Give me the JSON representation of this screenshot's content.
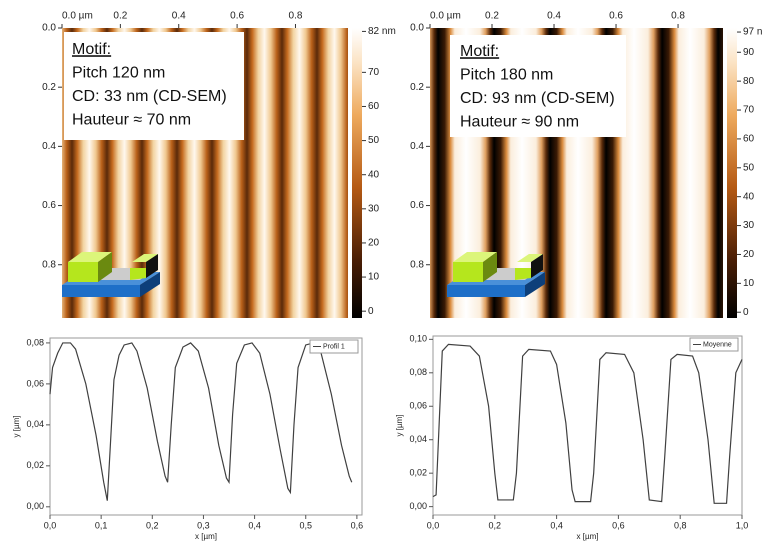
{
  "chart_data": [
    {
      "type": "image",
      "annotation": [
        "Motif:",
        "Pitch 120 nm",
        "CD: 33 nm (CD-SEM)",
        "Hauteur ≈ 70 nm"
      ],
      "xlim": [
        0,
        0.98
      ],
      "xticks": [
        {
          "value": 0,
          "label": "0.0 µm"
        },
        0.2,
        0.4,
        0.6,
        0.8
      ],
      "ylim": [
        0,
        0.98
      ],
      "yticks": [
        {
          "value": 0,
          "label": "0.0"
        },
        0.2,
        0.4,
        0.6,
        0.8
      ],
      "clim": [
        -2,
        83
      ],
      "cticks": [
        {
          "value": 82,
          "label": "82 nm"
        },
        70,
        60,
        50,
        40,
        30,
        20,
        10,
        0
      ]
    },
    {
      "type": "image",
      "annotation": [
        "Motif:",
        "Pitch 180 nm",
        "CD: 93 nm (CD-SEM)",
        "Hauteur ≈ 90 nm"
      ],
      "xlim": [
        0,
        0.945
      ],
      "xticks": [
        {
          "value": 0,
          "label": "0.0 µm"
        },
        0.2,
        0.4,
        0.6,
        0.8
      ],
      "ylim": [
        0,
        0.98
      ],
      "yticks": [
        {
          "value": 0,
          "label": "0.0"
        },
        0.2,
        0.4,
        0.6,
        0.8
      ],
      "clim": [
        -2,
        98.4
      ],
      "cticks": [
        {
          "value": 97,
          "label": "97 n"
        },
        90,
        80,
        70,
        60,
        50,
        40,
        30,
        20,
        10,
        0
      ]
    },
    {
      "type": "line",
      "xlabel": "x [µm]",
      "ylabel": "y [µm]",
      "xlim": [
        0,
        0.61
      ],
      "xticks": [
        {
          "value": 0,
          "label": "0,0"
        },
        {
          "value": 0.1,
          "label": "0,1"
        },
        {
          "value": 0.2,
          "label": "0,2"
        },
        {
          "value": 0.3,
          "label": "0,3"
        },
        {
          "value": 0.4,
          "label": "0,4"
        },
        {
          "value": 0.5,
          "label": "0,5"
        },
        {
          "value": 0.6,
          "label": "0,6"
        }
      ],
      "ylim": [
        -0.004,
        0.0824
      ],
      "yticks": [
        {
          "value": 0,
          "label": "0,00"
        },
        {
          "value": 0.02,
          "label": "0,02"
        },
        {
          "value": 0.04,
          "label": "0,04"
        },
        {
          "value": 0.06,
          "label": "0,06"
        },
        {
          "value": 0.08,
          "label": "0,08"
        }
      ],
      "x": [
        0,
        0.005,
        0.015,
        0.025,
        0.04,
        0.05,
        0.07,
        0.09,
        0.105,
        0.112,
        0.118,
        0.125,
        0.135,
        0.145,
        0.16,
        0.17,
        0.19,
        0.21,
        0.225,
        0.23,
        0.237,
        0.245,
        0.26,
        0.275,
        0.29,
        0.31,
        0.33,
        0.345,
        0.35,
        0.357,
        0.365,
        0.38,
        0.395,
        0.41,
        0.43,
        0.45,
        0.465,
        0.47,
        0.477,
        0.485,
        0.5,
        0.515,
        0.53,
        0.55,
        0.57,
        0.585,
        0.59
      ],
      "series": [
        {
          "name": "Profil 1",
          "color": "#404040",
          "values": [
            0.055,
            0.068,
            0.075,
            0.08,
            0.08,
            0.077,
            0.06,
            0.035,
            0.012,
            0.003,
            0.03,
            0.062,
            0.074,
            0.079,
            0.08,
            0.076,
            0.058,
            0.032,
            0.015,
            0.012,
            0.04,
            0.068,
            0.078,
            0.08,
            0.076,
            0.058,
            0.03,
            0.014,
            0.012,
            0.045,
            0.07,
            0.079,
            0.08,
            0.075,
            0.055,
            0.028,
            0.009,
            0.007,
            0.04,
            0.068,
            0.079,
            0.08,
            0.075,
            0.055,
            0.03,
            0.015,
            0.012
          ]
        }
      ]
    },
    {
      "type": "line",
      "xlabel": "x [µm]",
      "ylabel": "y [µm]",
      "xlim": [
        0,
        1.0
      ],
      "xticks": [
        {
          "value": 0,
          "label": "0,0"
        },
        {
          "value": 0.2,
          "label": "0,2"
        },
        {
          "value": 0.4,
          "label": "0,4"
        },
        {
          "value": 0.6,
          "label": "0,6"
        },
        {
          "value": 0.8,
          "label": "0,8"
        },
        {
          "value": 1,
          "label": "1,0"
        }
      ],
      "ylim": [
        -0.005,
        0.102
      ],
      "yticks": [
        {
          "value": 0,
          "label": "0,00"
        },
        {
          "value": 0.02,
          "label": "0,02"
        },
        {
          "value": 0.04,
          "label": "0,04"
        },
        {
          "value": 0.06,
          "label": "0,06"
        },
        {
          "value": 0.08,
          "label": "0,08"
        },
        {
          "value": 0.1,
          "label": "0,10"
        }
      ],
      "x": [
        0,
        0.01,
        0.02,
        0.03,
        0.05,
        0.12,
        0.15,
        0.18,
        0.2,
        0.21,
        0.26,
        0.27,
        0.29,
        0.31,
        0.38,
        0.4,
        0.43,
        0.45,
        0.46,
        0.51,
        0.52,
        0.54,
        0.56,
        0.62,
        0.65,
        0.68,
        0.7,
        0.74,
        0.75,
        0.77,
        0.79,
        0.84,
        0.86,
        0.89,
        0.91,
        0.95,
        0.96,
        0.98,
        1.0
      ],
      "series": [
        {
          "name": "Moyenne",
          "color": "#404040",
          "values": [
            0.006,
            0.007,
            0.05,
            0.093,
            0.097,
            0.096,
            0.09,
            0.06,
            0.02,
            0.004,
            0.004,
            0.02,
            0.09,
            0.094,
            0.093,
            0.085,
            0.05,
            0.01,
            0.003,
            0.003,
            0.02,
            0.088,
            0.092,
            0.091,
            0.08,
            0.04,
            0.004,
            0.003,
            0.03,
            0.088,
            0.091,
            0.09,
            0.08,
            0.04,
            0.002,
            0.002,
            0.03,
            0.08,
            0.088
          ]
        }
      ]
    }
  ]
}
